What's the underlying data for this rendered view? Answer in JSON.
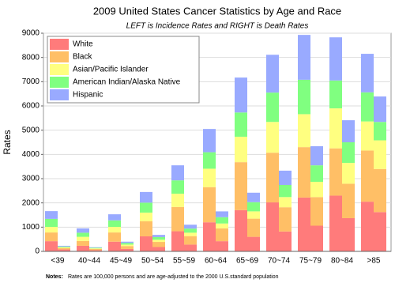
{
  "chart_data": {
    "type": "paired-stacked-bar",
    "title": "2009 United States Cancer Statistics by Age and Race",
    "subtitle": "LEFT is Incidence Rates and RIGHT is Death Rates",
    "y_label": "Rates",
    "note_label": "Notes:",
    "note": "Rates are 100,000 persons and are age-adjusted to the 2000 U.S.standard population",
    "categories": [
      "<39",
      "40~44",
      "45~49",
      "50~54",
      "55~59",
      "60~64",
      "65~69",
      "70~74",
      "75~79",
      "80~84",
      ">85"
    ],
    "series": [
      {
        "name": "White",
        "color": "#ff7b7b",
        "incidence": [
          420,
          230,
          400,
          620,
          830,
          1200,
          1700,
          2020,
          2220,
          2300,
          2050
        ],
        "death": [
          80,
          50,
          100,
          180,
          280,
          420,
          600,
          820,
          1060,
          1370,
          1620
        ]
      },
      {
        "name": "Black",
        "color": "#ffbf66",
        "incidence": [
          360,
          200,
          380,
          620,
          1000,
          1450,
          1980,
          2050,
          2080,
          1950,
          2110
        ],
        "death": [
          60,
          50,
          120,
          210,
          350,
          530,
          750,
          1000,
          1180,
          1420,
          1780
        ]
      },
      {
        "name": "Asian/Pacific Islander",
        "color": "#ffff80",
        "incidence": [
          230,
          170,
          230,
          360,
          550,
          760,
          1050,
          1270,
          1360,
          1650,
          1200
        ],
        "death": [
          30,
          25,
          60,
          90,
          140,
          200,
          300,
          420,
          630,
          860,
          1180
        ]
      },
      {
        "name": "American Indian/Alaska Native",
        "color": "#80ff80",
        "incidence": [
          330,
          170,
          270,
          410,
          550,
          680,
          1000,
          1210,
          1420,
          1150,
          1200
        ],
        "death": [
          30,
          25,
          70,
          110,
          170,
          260,
          380,
          500,
          680,
          850,
          760
        ]
      },
      {
        "name": "Hispanic",
        "color": "#99aaff",
        "incidence": [
          320,
          180,
          250,
          440,
          620,
          960,
          1440,
          1560,
          1850,
          1780,
          1590
        ],
        "death": [
          30,
          20,
          50,
          90,
          160,
          240,
          390,
          590,
          790,
          910,
          1050
        ]
      }
    ],
    "ylim": [
      0,
      9000
    ],
    "yticks": [
      0,
      1000,
      2000,
      3000,
      4000,
      5000,
      6000,
      7000,
      8000,
      9000
    ],
    "grid": true,
    "legend": "upper-left"
  }
}
